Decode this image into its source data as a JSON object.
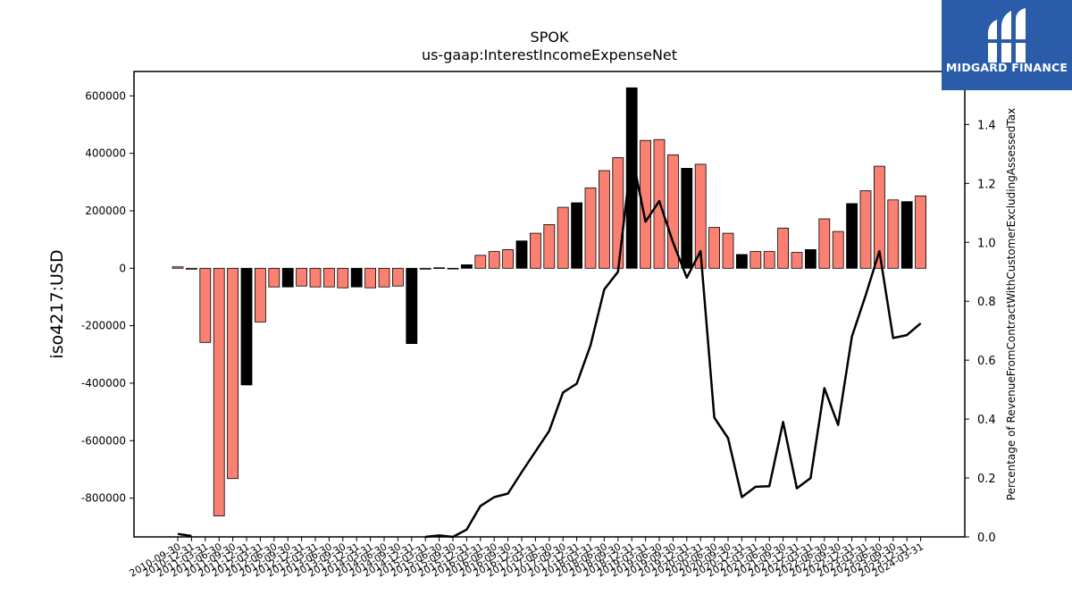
{
  "brand": {
    "name": "MIDGARD FINANCE",
    "color": "#2a5caa"
  },
  "chart_data": {
    "type": "bar",
    "title": "SPOK",
    "subtitle": "us-gaap:InterestIncomeExpenseNet",
    "ylabel": "iso4217:USD",
    "y2label": "Percentage of RevenueFromContractWithCustomerExcludingAssessedTax",
    "ylim": [
      -935000,
      685000
    ],
    "y2lim": [
      0,
      1.58
    ],
    "yticks": [
      -800000,
      -600000,
      -400000,
      -200000,
      0,
      200000,
      400000,
      600000
    ],
    "y2ticks": [
      0.0,
      0.2,
      0.4,
      0.6,
      0.8,
      1.0,
      1.2,
      1.4
    ],
    "colors": {
      "quarterly": "#fa8072",
      "annual": "#000000",
      "line": "#000000"
    },
    "categories": [
      "2010-09-30",
      "2010-12-31",
      "2011-03-31",
      "2011-06-30",
      "2011-09-30",
      "2011-12-31",
      "2012-03-31",
      "2012-06-30",
      "2012-09-30",
      "2012-12-31",
      "2013-03-31",
      "2013-06-30",
      "2013-09-30",
      "2013-12-31",
      "2014-03-31",
      "2014-06-30",
      "2014-09-30",
      "2014-12-31",
      "2015-03-31",
      "2015-06-30",
      "2015-09-30",
      "2015-12-31",
      "2016-03-31",
      "2016-06-30",
      "2016-09-30",
      "2016-12-31",
      "2017-03-31",
      "2017-06-30",
      "2017-09-30",
      "2017-12-31",
      "2018-03-31",
      "2018-06-30",
      "2018-09-30",
      "2018-12-31",
      "2019-03-31",
      "2019-06-30",
      "2019-09-30",
      "2019-12-31",
      "2020-03-31",
      "2020-06-30",
      "2020-09-30",
      "2020-12-31",
      "2021-03-31",
      "2021-06-30",
      "2021-09-30",
      "2021-12-31",
      "2022-03-31",
      "2022-06-30",
      "2022-09-30",
      "2022-12-31",
      "2023-03-31",
      "2023-06-30",
      "2023-09-30",
      "2023-12-31",
      "2024-03-31"
    ],
    "series": [
      {
        "values": [
          5000,
          -3000,
          -258000,
          -862000,
          -732000,
          -406000,
          -187000,
          -65000,
          -65000,
          -62000,
          -65000,
          -65000,
          -68000,
          -65000,
          -68000,
          -65000,
          -62000,
          -262000,
          -3000,
          2000,
          0,
          12000,
          45000,
          58000,
          65000,
          95000,
          122000,
          152000,
          212000,
          228000,
          280000,
          340000,
          385000,
          628000,
          445000,
          448000,
          395000,
          348000,
          362000,
          142000,
          122000,
          48000,
          58000,
          58000,
          140000,
          55000,
          65000,
          172000,
          128000,
          225000,
          270000,
          355000,
          238000,
          232000,
          252000
        ],
        "period": [
          "Q",
          "Q",
          "Q",
          "Q",
          "Q",
          "FY",
          "Q",
          "Q",
          "FY",
          "Q",
          "Q",
          "Q",
          "Q",
          "FY",
          "Q",
          "Q",
          "Q",
          "FY",
          "Q",
          "Q",
          "Q",
          "FY",
          "Q",
          "Q",
          "Q",
          "FY",
          "Q",
          "Q",
          "Q",
          "FY",
          "Q",
          "Q",
          "Q",
          "FY",
          "Q",
          "Q",
          "Q",
          "FY",
          "Q",
          "Q",
          "Q",
          "FY",
          "Q",
          "Q",
          "Q",
          "Q",
          "FY",
          "Q",
          "Q",
          "FY",
          "Q",
          "Q",
          "Q",
          "FY",
          "Q"
        ]
      },
      {
        "type": "line",
        "axis": "right",
        "x_start_index": 0,
        "values": [
          0.01,
          0.003,
          null,
          null,
          null,
          null,
          null,
          null,
          null,
          null,
          null,
          null,
          null,
          null,
          null,
          null,
          null,
          null,
          -0.01,
          0.005,
          0.0,
          0.025,
          0.105,
          0.135,
          0.147,
          0.22,
          0.29,
          0.36,
          0.49,
          0.52,
          0.65,
          0.84,
          0.9,
          1.3,
          1.07,
          1.14,
          1.0,
          0.88,
          0.97,
          0.405,
          0.335,
          0.135,
          0.17,
          0.172,
          0.39,
          0.165,
          0.2,
          0.505,
          0.38,
          0.68,
          0.82,
          0.97,
          0.675,
          0.685,
          0.725
        ]
      }
    ]
  }
}
